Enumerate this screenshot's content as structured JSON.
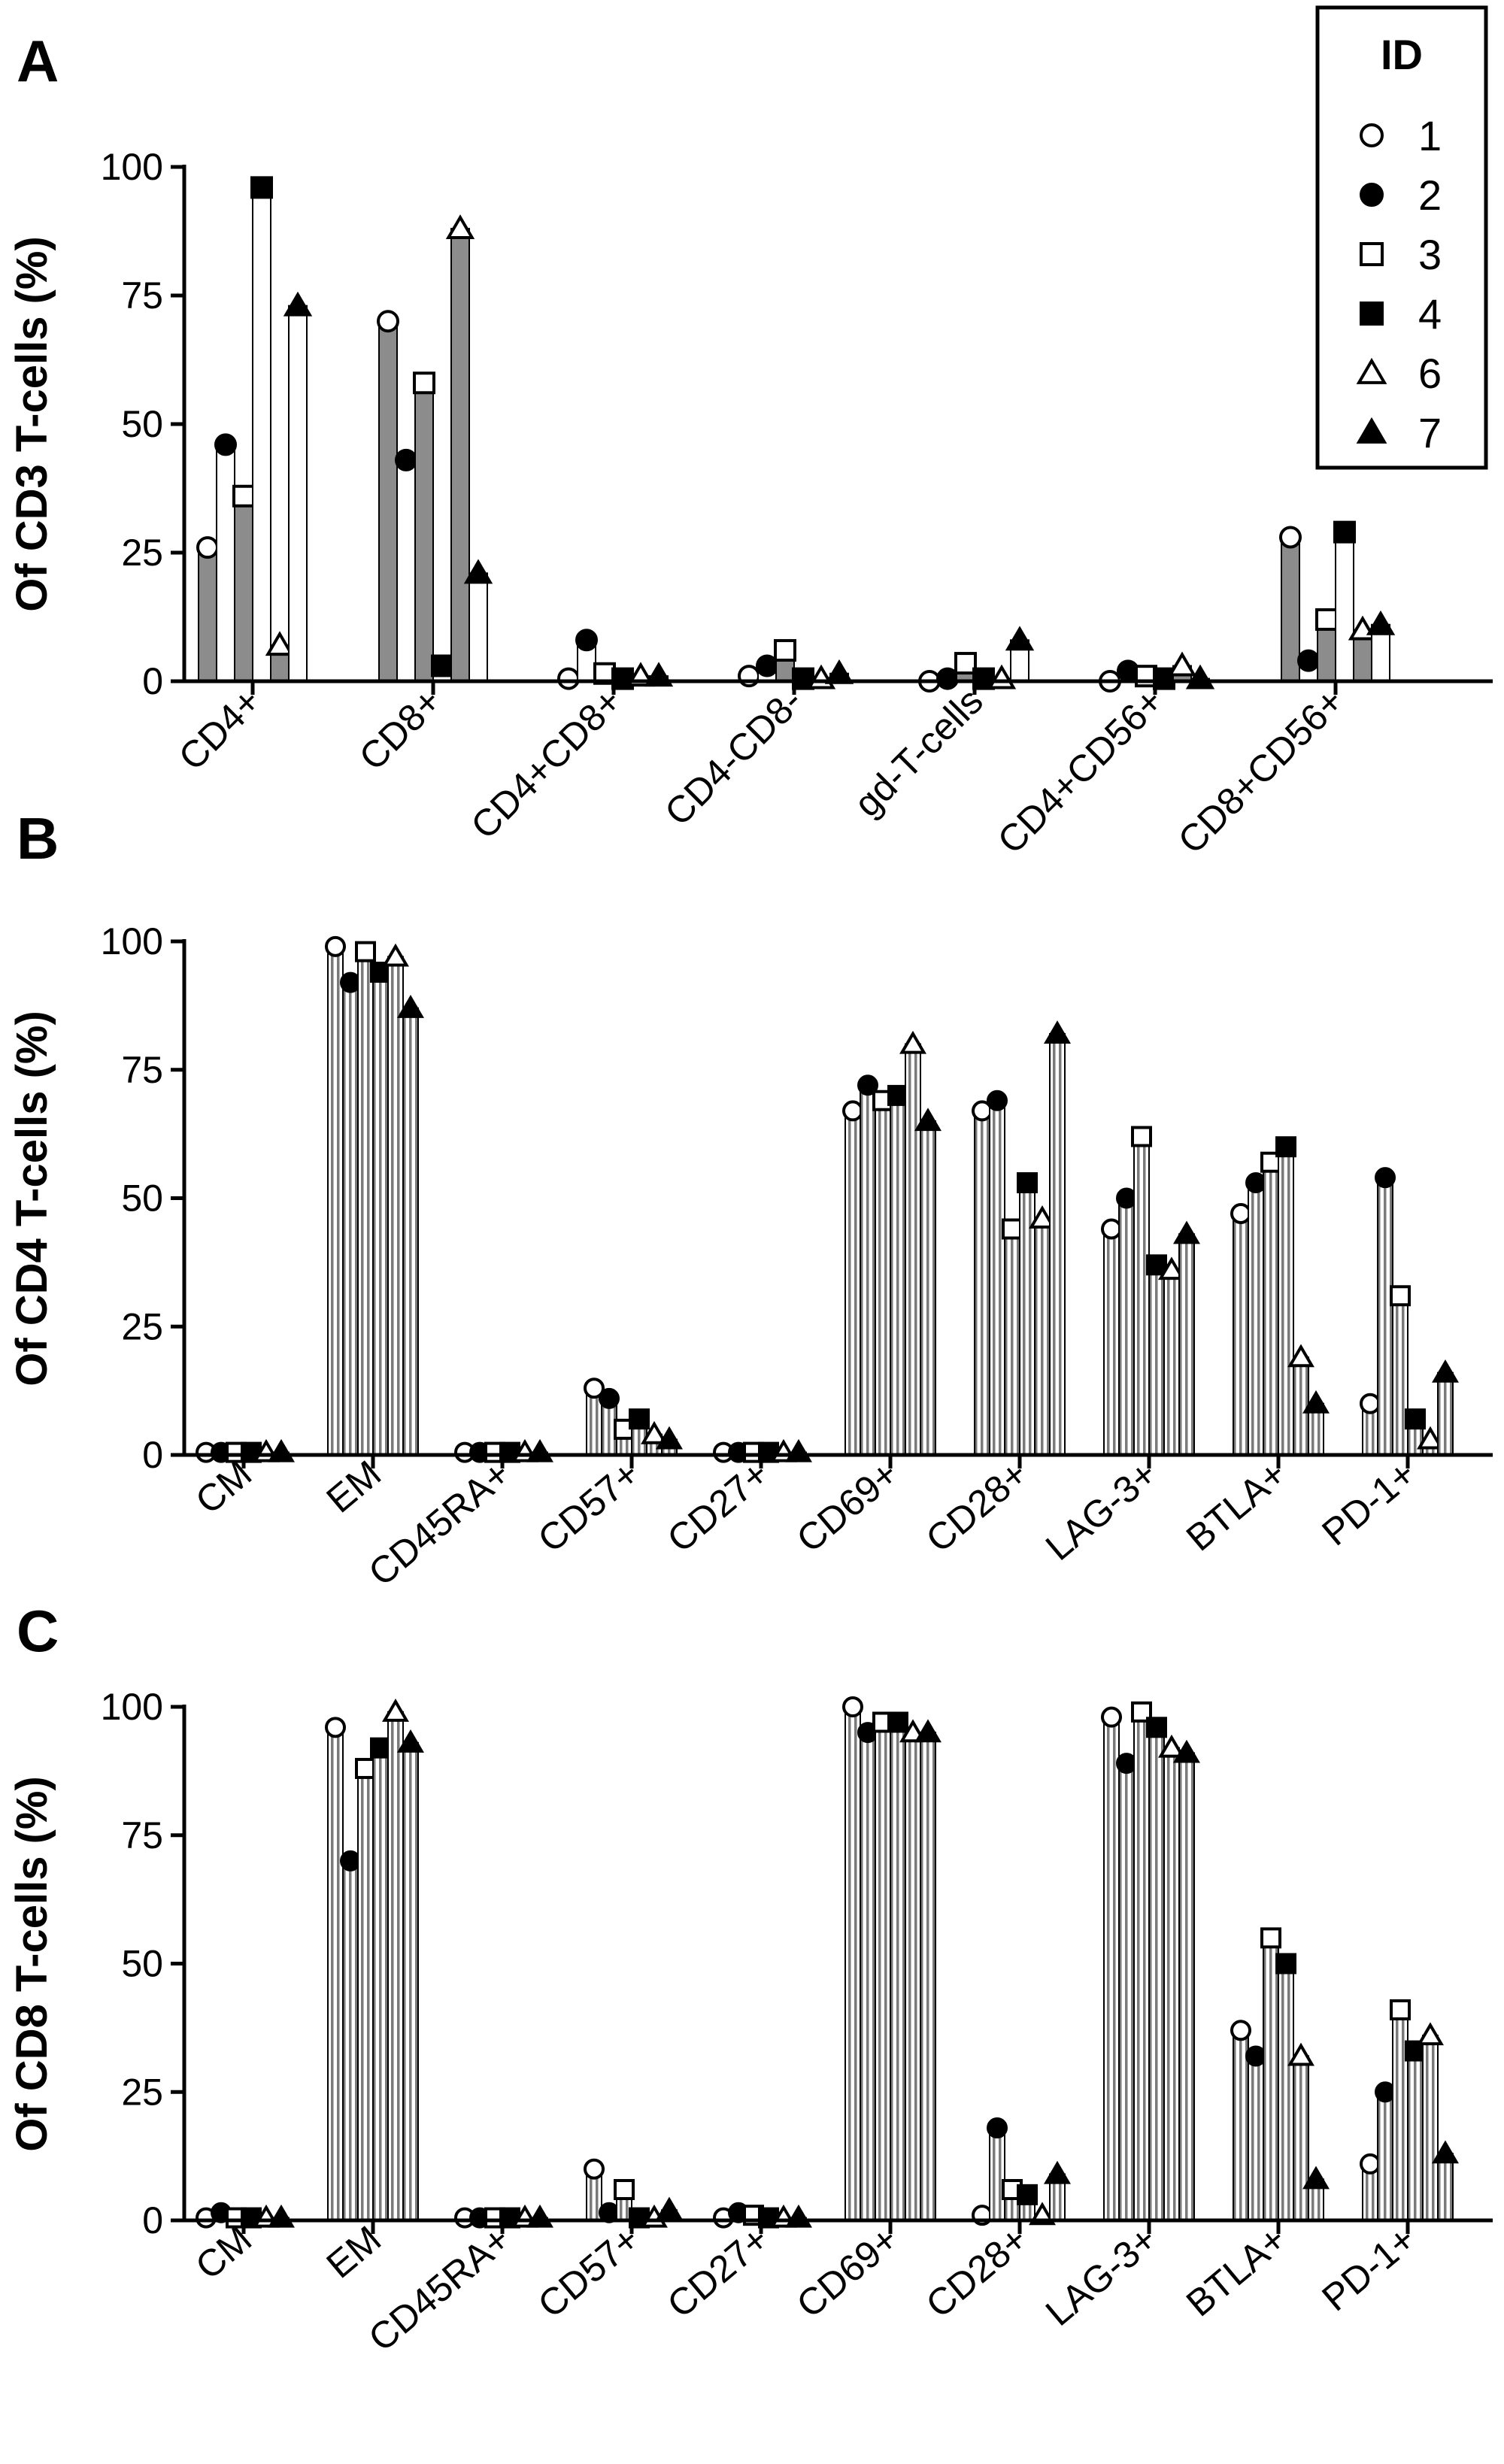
{
  "legend": {
    "title": "ID",
    "entries": [
      {
        "label": "1",
        "marker": "circle-open"
      },
      {
        "label": "2",
        "marker": "circle-filled"
      },
      {
        "label": "3",
        "marker": "square-open"
      },
      {
        "label": "4",
        "marker": "square-filled"
      },
      {
        "label": "6",
        "marker": "triangle-open"
      },
      {
        "label": "7",
        "marker": "triangle-filled"
      }
    ]
  },
  "colors": {
    "bar_dark": "#8c8c8c",
    "bar_light": "#ffffff",
    "ink": "#000000"
  },
  "chart_data": [
    {
      "type": "bar",
      "panel": "A",
      "ylabel": "Of  CD3 T-cells  (%)",
      "ylim": [
        0,
        100
      ],
      "yticks": [
        0,
        25,
        50,
        75,
        100
      ],
      "categories": [
        "CD4+",
        "CD8+",
        "CD4+CD8+",
        "CD4-CD8-",
        "gd-T-cells",
        "CD4+CD56+",
        "CD8+CD56+"
      ],
      "series": [
        {
          "name": "1",
          "values": [
            26,
            70,
            0.5,
            1,
            0,
            0,
            28
          ]
        },
        {
          "name": "2",
          "values": [
            46,
            43,
            8,
            3,
            0.5,
            2,
            4
          ]
        },
        {
          "name": "3",
          "values": [
            36,
            58,
            1.5,
            6,
            3.5,
            1,
            12
          ]
        },
        {
          "name": "4",
          "values": [
            96,
            3,
            0.5,
            0.5,
            0.5,
            0.5,
            29
          ]
        },
        {
          "name": "6",
          "values": [
            7,
            88,
            1,
            0.5,
            0.5,
            3,
            10
          ]
        },
        {
          "name": "7",
          "values": [
            73,
            21,
            1,
            1.5,
            8,
            0.5,
            11
          ]
        }
      ]
    },
    {
      "type": "bar",
      "panel": "B",
      "ylabel": "Of  CD4 T-cells  (%)",
      "ylim": [
        0,
        100
      ],
      "yticks": [
        0,
        25,
        50,
        75,
        100
      ],
      "categories": [
        "CM",
        "EM",
        "CD45RA+",
        "CD57+",
        "CD27+",
        "CD69+",
        "CD28+",
        "LAG-3+",
        "BTLA+",
        "PD-1+"
      ],
      "series": [
        {
          "name": "1",
          "values": [
            0.5,
            99,
            0.5,
            13,
            0.5,
            67,
            67,
            44,
            47,
            10
          ]
        },
        {
          "name": "2",
          "values": [
            0.5,
            92,
            0.5,
            11,
            0.5,
            72,
            69,
            50,
            53,
            54
          ]
        },
        {
          "name": "3",
          "values": [
            0.5,
            98,
            0.5,
            5,
            0.5,
            69,
            44,
            62,
            57,
            31
          ]
        },
        {
          "name": "4",
          "values": [
            0.5,
            94,
            0.5,
            7,
            0.5,
            70,
            53,
            37,
            60,
            7
          ]
        },
        {
          "name": "6",
          "values": [
            0.5,
            97,
            0.5,
            4,
            0.5,
            80,
            46,
            36,
            19,
            3
          ]
        },
        {
          "name": "7",
          "values": [
            0.5,
            87,
            0.5,
            3,
            0.5,
            65,
            82,
            43,
            10,
            16
          ]
        }
      ]
    },
    {
      "type": "bar",
      "panel": "C",
      "ylabel": "Of  CD8 T-cells  (%)",
      "ylim": [
        0,
        100
      ],
      "yticks": [
        0,
        25,
        50,
        75,
        100
      ],
      "categories": [
        "CM",
        "EM",
        "CD45RA+",
        "CD57+",
        "CD27+",
        "CD69+",
        "CD28+",
        "LAG-3+",
        "BTLA+",
        "PD-1+"
      ],
      "series": [
        {
          "name": "1",
          "values": [
            0.5,
            96,
            0.5,
            10,
            0.5,
            100,
            1,
            98,
            37,
            11
          ]
        },
        {
          "name": "2",
          "values": [
            1.5,
            70,
            0.5,
            1.5,
            1.5,
            95,
            18,
            89,
            32,
            25
          ]
        },
        {
          "name": "3",
          "values": [
            0.5,
            88,
            0.5,
            6,
            1,
            97,
            6,
            99,
            55,
            41
          ]
        },
        {
          "name": "4",
          "values": [
            0.5,
            92,
            0.5,
            0.5,
            0.5,
            97,
            5,
            96,
            50,
            33
          ]
        },
        {
          "name": "6",
          "values": [
            0.5,
            99,
            0.5,
            0.5,
            0.5,
            95,
            1,
            92,
            32,
            36
          ]
        },
        {
          "name": "7",
          "values": [
            0.5,
            93,
            0.5,
            2,
            0.5,
            95,
            9,
            91,
            8,
            13
          ]
        }
      ]
    }
  ]
}
